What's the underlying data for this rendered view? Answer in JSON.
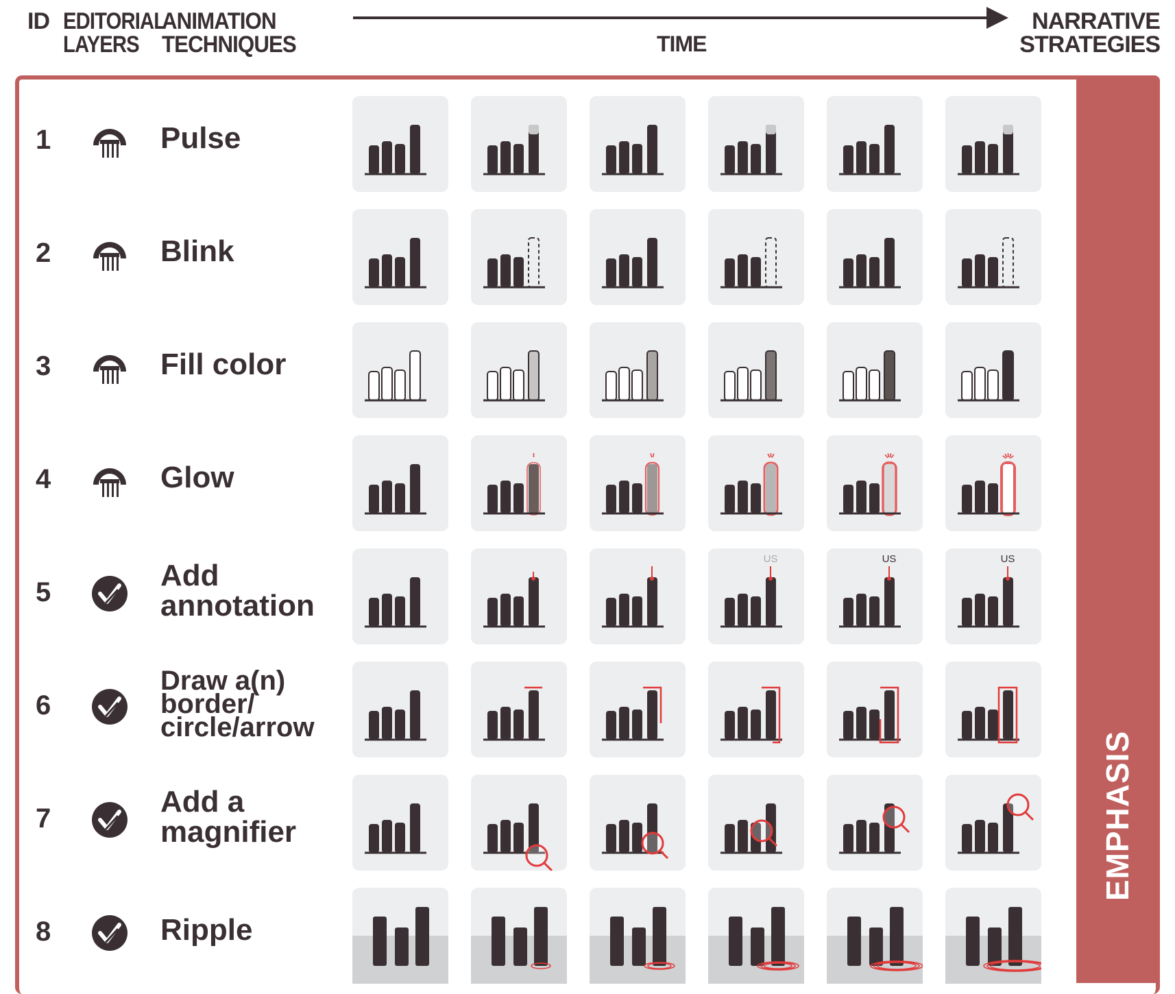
{
  "header": {
    "id": "ID",
    "layers": [
      "EDITORIAL",
      "LAYERS"
    ],
    "techniques": [
      "ANIMATION",
      "TECHNIQUES"
    ],
    "time": "TIME",
    "strategies": [
      "NARRATIVE",
      "STRATEGIES"
    ]
  },
  "strategy_band": "EMPHASIS",
  "annotation_label": "US",
  "colors": {
    "accent": "#c0605e",
    "bar": "#3a3033",
    "tile": "#eceef0",
    "highlight": "#e23a3a"
  },
  "rows": [
    {
      "id": "1",
      "name": [
        "Pulse"
      ],
      "layer_icon": "data-layer-icon"
    },
    {
      "id": "2",
      "name": [
        "Blink"
      ],
      "layer_icon": "data-layer-icon"
    },
    {
      "id": "3",
      "name": [
        "Fill color"
      ],
      "layer_icon": "data-layer-icon"
    },
    {
      "id": "4",
      "name": [
        "Glow"
      ],
      "layer_icon": "data-layer-icon"
    },
    {
      "id": "5",
      "name": [
        "Add",
        "annotation"
      ],
      "layer_icon": "annotation-layer-icon"
    },
    {
      "id": "6",
      "name": [
        "Draw a(n)",
        "border/",
        "circle/arrow"
      ],
      "layer_icon": "annotation-layer-icon"
    },
    {
      "id": "7",
      "name": [
        "Add a",
        "magnifier"
      ],
      "layer_icon": "annotation-layer-icon"
    },
    {
      "id": "8",
      "name": [
        "Ripple"
      ],
      "layer_icon": "annotation-layer-icon"
    }
  ]
}
